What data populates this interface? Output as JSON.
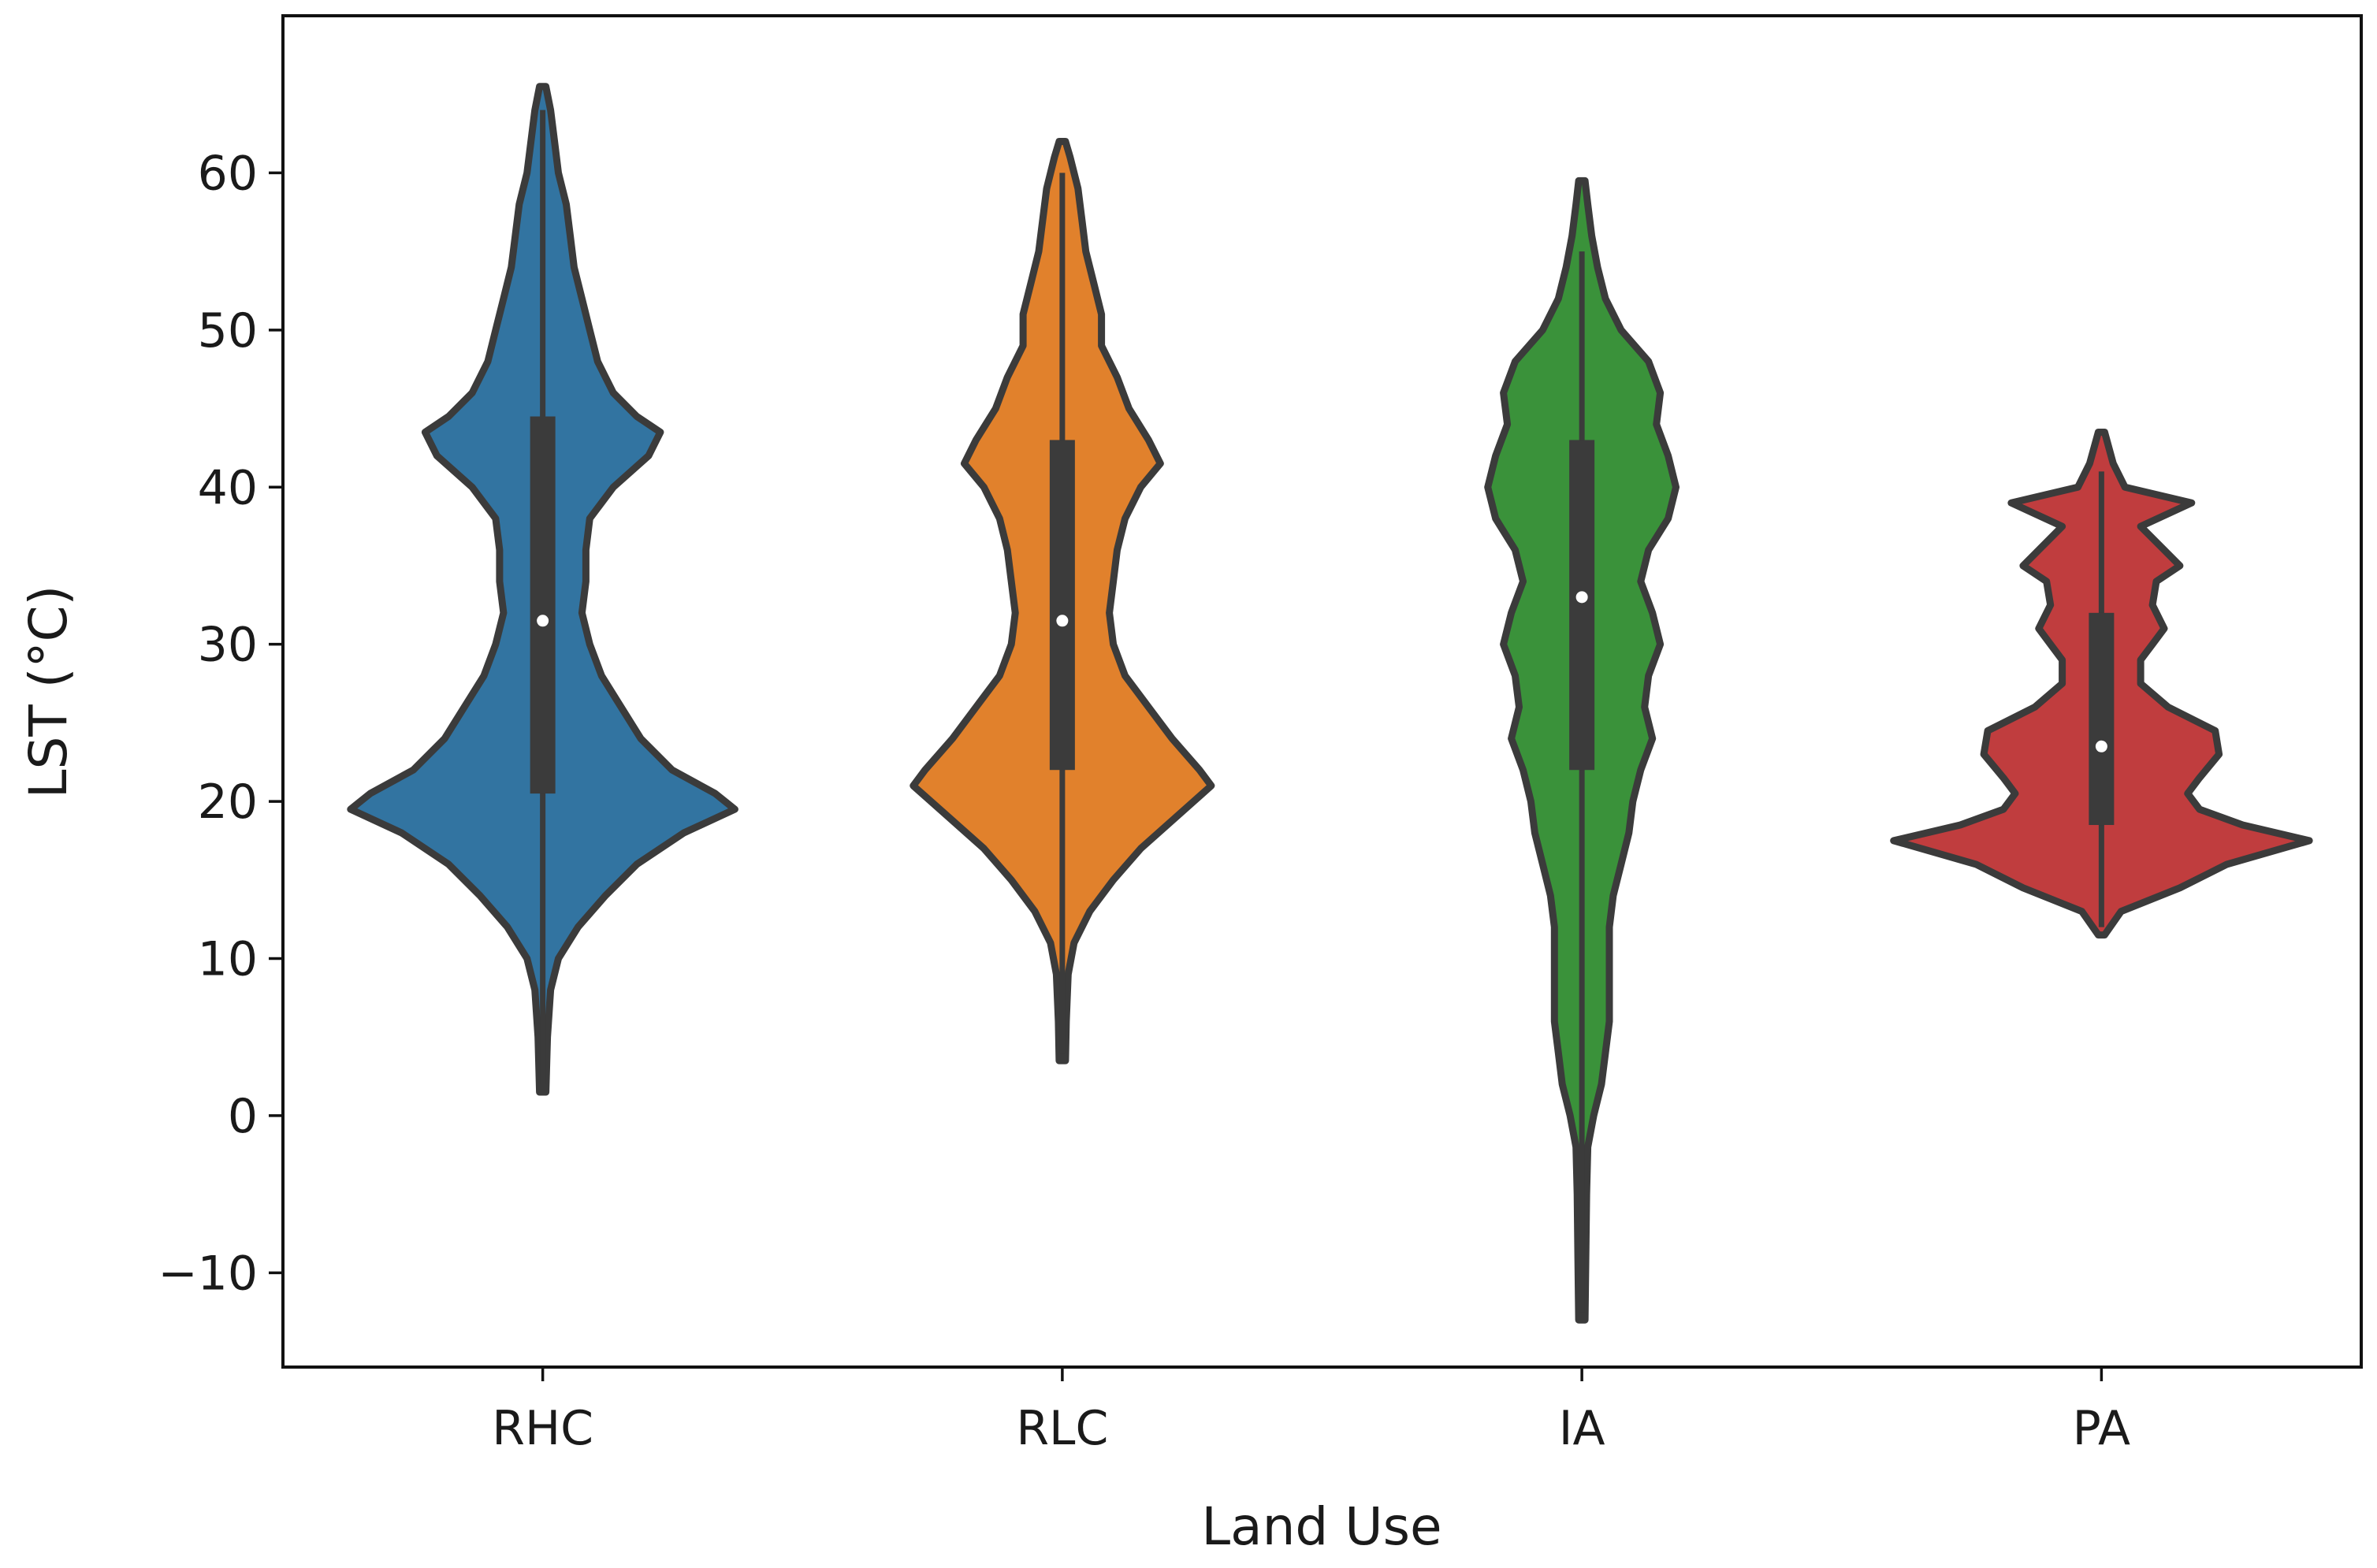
{
  "chart_data": {
    "type": "violin",
    "xlabel": "Land Use",
    "ylabel": "LST (°C)",
    "ylim": [
      -16,
      70
    ],
    "yticks": [
      -10,
      0,
      10,
      20,
      30,
      40,
      50,
      60
    ],
    "ytick_labels": [
      "−10",
      "0",
      "10",
      "20",
      "30",
      "40",
      "50",
      "60"
    ],
    "grid": false,
    "categories": [
      "RHC",
      "RLC",
      "IA",
      "PA"
    ],
    "series": [
      {
        "name": "RHC",
        "color": "#3274a1",
        "min": 1.5,
        "max": 65.5,
        "q1": 20.5,
        "median": 31.5,
        "q3": 44.5,
        "whisker_low": 2,
        "whisker_high": 64,
        "density": [
          [
            1.5,
            0.008
          ],
          [
            5,
            0.012
          ],
          [
            8,
            0.02
          ],
          [
            10,
            0.04
          ],
          [
            12,
            0.09
          ],
          [
            14,
            0.16
          ],
          [
            16,
            0.24
          ],
          [
            18,
            0.36
          ],
          [
            19.5,
            0.49
          ],
          [
            20.5,
            0.44
          ],
          [
            22,
            0.33
          ],
          [
            24,
            0.25
          ],
          [
            26,
            0.2
          ],
          [
            28,
            0.15
          ],
          [
            30,
            0.12
          ],
          [
            32,
            0.1
          ],
          [
            34,
            0.11
          ],
          [
            36,
            0.11
          ],
          [
            38,
            0.12
          ],
          [
            40,
            0.18
          ],
          [
            42,
            0.27
          ],
          [
            43.5,
            0.3
          ],
          [
            44.5,
            0.24
          ],
          [
            46,
            0.18
          ],
          [
            48,
            0.14
          ],
          [
            50,
            0.12
          ],
          [
            52,
            0.1
          ],
          [
            54,
            0.08
          ],
          [
            56,
            0.07
          ],
          [
            58,
            0.06
          ],
          [
            60,
            0.04
          ],
          [
            62,
            0.03
          ],
          [
            64,
            0.02
          ],
          [
            65.5,
            0.008
          ]
        ]
      },
      {
        "name": "RLC",
        "color": "#e1812c",
        "min": 3.5,
        "max": 62,
        "q1": 22,
        "median": 31.5,
        "q3": 43,
        "whisker_low": 4,
        "whisker_high": 60,
        "density": [
          [
            3.5,
            0.008
          ],
          [
            6,
            0.01
          ],
          [
            9,
            0.015
          ],
          [
            11,
            0.03
          ],
          [
            13,
            0.07
          ],
          [
            15,
            0.13
          ],
          [
            17,
            0.2
          ],
          [
            19,
            0.29
          ],
          [
            21,
            0.38
          ],
          [
            22,
            0.35
          ],
          [
            24,
            0.28
          ],
          [
            26,
            0.22
          ],
          [
            28,
            0.16
          ],
          [
            30,
            0.13
          ],
          [
            32,
            0.12
          ],
          [
            34,
            0.13
          ],
          [
            36,
            0.14
          ],
          [
            38,
            0.16
          ],
          [
            40,
            0.2
          ],
          [
            41.5,
            0.25
          ],
          [
            43,
            0.22
          ],
          [
            45,
            0.17
          ],
          [
            47,
            0.14
          ],
          [
            49,
            0.1
          ],
          [
            51,
            0.1
          ],
          [
            53,
            0.08
          ],
          [
            55,
            0.06
          ],
          [
            57,
            0.05
          ],
          [
            59,
            0.04
          ],
          [
            61,
            0.02
          ],
          [
            62,
            0.008
          ]
        ]
      },
      {
        "name": "IA",
        "color": "#3a923a",
        "min": -13,
        "max": 59.5,
        "q1": 22,
        "median": 33,
        "q3": 43,
        "whisker_low": -12.5,
        "whisker_high": 55,
        "density": [
          [
            -13,
            0.008
          ],
          [
            -9,
            0.01
          ],
          [
            -5,
            0.012
          ],
          [
            -2,
            0.015
          ],
          [
            0,
            0.03
          ],
          [
            2,
            0.05
          ],
          [
            4,
            0.06
          ],
          [
            6,
            0.07
          ],
          [
            8,
            0.07
          ],
          [
            10,
            0.07
          ],
          [
            12,
            0.07
          ],
          [
            14,
            0.08
          ],
          [
            16,
            0.1
          ],
          [
            18,
            0.12
          ],
          [
            20,
            0.13
          ],
          [
            22,
            0.15
          ],
          [
            24,
            0.18
          ],
          [
            26,
            0.16
          ],
          [
            28,
            0.17
          ],
          [
            30,
            0.2
          ],
          [
            32,
            0.18
          ],
          [
            34,
            0.15
          ],
          [
            36,
            0.17
          ],
          [
            38,
            0.22
          ],
          [
            40,
            0.24
          ],
          [
            42,
            0.22
          ],
          [
            44,
            0.19
          ],
          [
            46,
            0.2
          ],
          [
            48,
            0.17
          ],
          [
            50,
            0.1
          ],
          [
            52,
            0.06
          ],
          [
            54,
            0.04
          ],
          [
            56,
            0.025
          ],
          [
            58,
            0.015
          ],
          [
            59.5,
            0.008
          ]
        ]
      },
      {
        "name": "PA",
        "color": "#c03d3e",
        "min": 11.5,
        "max": 43.5,
        "q1": 18.5,
        "median": 23.5,
        "q3": 32,
        "whisker_low": 12,
        "whisker_high": 41,
        "density": [
          [
            11.5,
            0.008
          ],
          [
            13,
            0.05
          ],
          [
            14.5,
            0.2
          ],
          [
            16,
            0.32
          ],
          [
            17.5,
            0.53
          ],
          [
            18.5,
            0.36
          ],
          [
            19.5,
            0.25
          ],
          [
            20.5,
            0.22
          ],
          [
            21.5,
            0.25
          ],
          [
            23,
            0.3
          ],
          [
            24.5,
            0.29
          ],
          [
            26,
            0.17
          ],
          [
            27.5,
            0.1
          ],
          [
            29,
            0.1
          ],
          [
            30,
            0.13
          ],
          [
            31,
            0.16
          ],
          [
            32.5,
            0.13
          ],
          [
            34,
            0.14
          ],
          [
            35,
            0.2
          ],
          [
            36,
            0.16
          ],
          [
            37.5,
            0.1
          ],
          [
            39,
            0.23
          ],
          [
            40,
            0.06
          ],
          [
            41.5,
            0.03
          ],
          [
            43.5,
            0.008
          ]
        ]
      }
    ]
  }
}
